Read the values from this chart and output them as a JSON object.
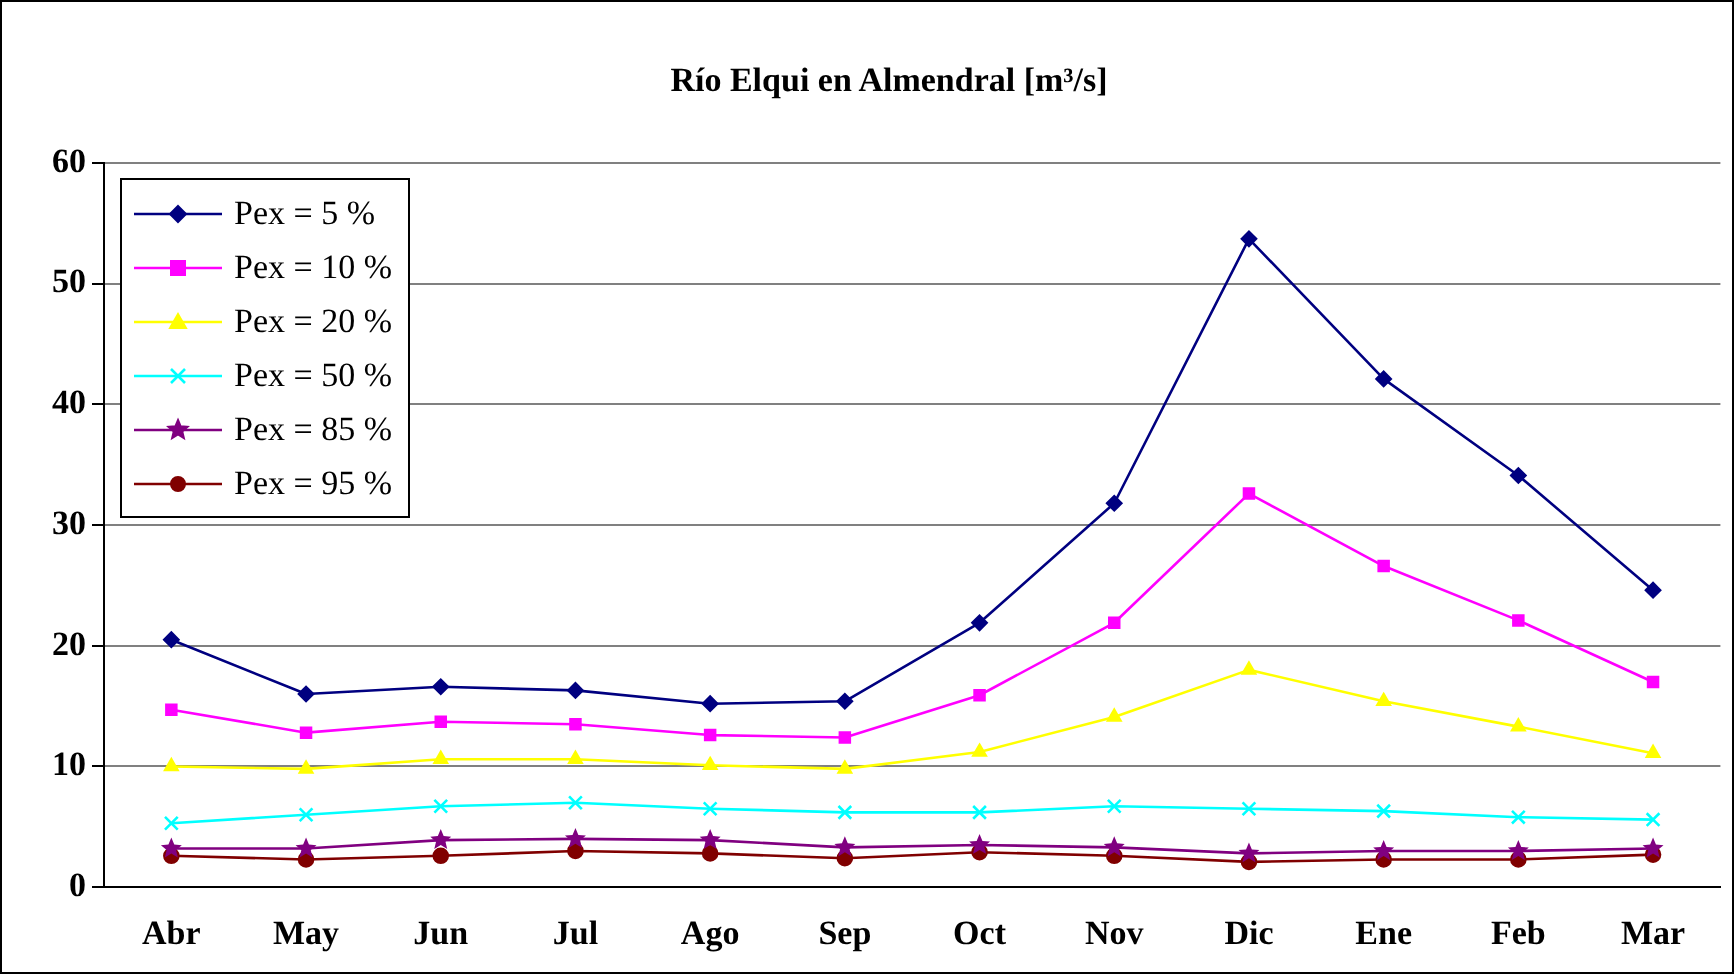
{
  "chart_data": {
    "type": "line",
    "title": "Río Elqui en Almendral [m³/s]",
    "categories": [
      "Abr",
      "May",
      "Jun",
      "Jul",
      "Ago",
      "Sep",
      "Oct",
      "Nov",
      "Dic",
      "Ene",
      "Feb",
      "Mar"
    ],
    "series": [
      {
        "name": "Pex = 5 %",
        "color": "#000080",
        "marker": "diamond",
        "values": [
          20.5,
          16,
          16.6,
          16.3,
          15.2,
          15.4,
          21.9,
          31.8,
          53.7,
          42.1,
          34.1,
          24.6
        ]
      },
      {
        "name": "Pex = 10 %",
        "color": "#ff00ff",
        "marker": "square",
        "values": [
          14.7,
          12.8,
          13.7,
          13.5,
          12.6,
          12.4,
          15.9,
          21.9,
          32.6,
          26.6,
          22.1,
          17.0
        ]
      },
      {
        "name": "Pex = 20 %",
        "color": "#ffff00",
        "marker": "triangle",
        "values": [
          10.0,
          9.8,
          10.6,
          10.6,
          10.1,
          9.8,
          11.2,
          14.1,
          18.0,
          15.4,
          13.3,
          11.1
        ]
      },
      {
        "name": "Pex = 50 %",
        "color": "#00ffff",
        "marker": "cross",
        "values": [
          5.3,
          6.0,
          6.7,
          7.0,
          6.5,
          6.2,
          6.2,
          6.7,
          6.5,
          6.3,
          5.8,
          5.6
        ]
      },
      {
        "name": "Pex = 85 %",
        "color": "#800080",
        "marker": "star",
        "values": [
          3.2,
          3.2,
          3.9,
          4.0,
          3.9,
          3.3,
          3.5,
          3.3,
          2.8,
          3.0,
          3.0,
          3.2
        ]
      },
      {
        "name": "Pex = 95 %",
        "color": "#800000",
        "marker": "circle",
        "values": [
          2.6,
          2.3,
          2.6,
          3.0,
          2.8,
          2.4,
          2.9,
          2.6,
          2.1,
          2.3,
          2.3,
          2.7
        ]
      }
    ],
    "ylim": [
      0,
      60
    ],
    "yticks": [
      0,
      10,
      20,
      30,
      40,
      50,
      60
    ],
    "grid": "y",
    "legend": "top left"
  }
}
